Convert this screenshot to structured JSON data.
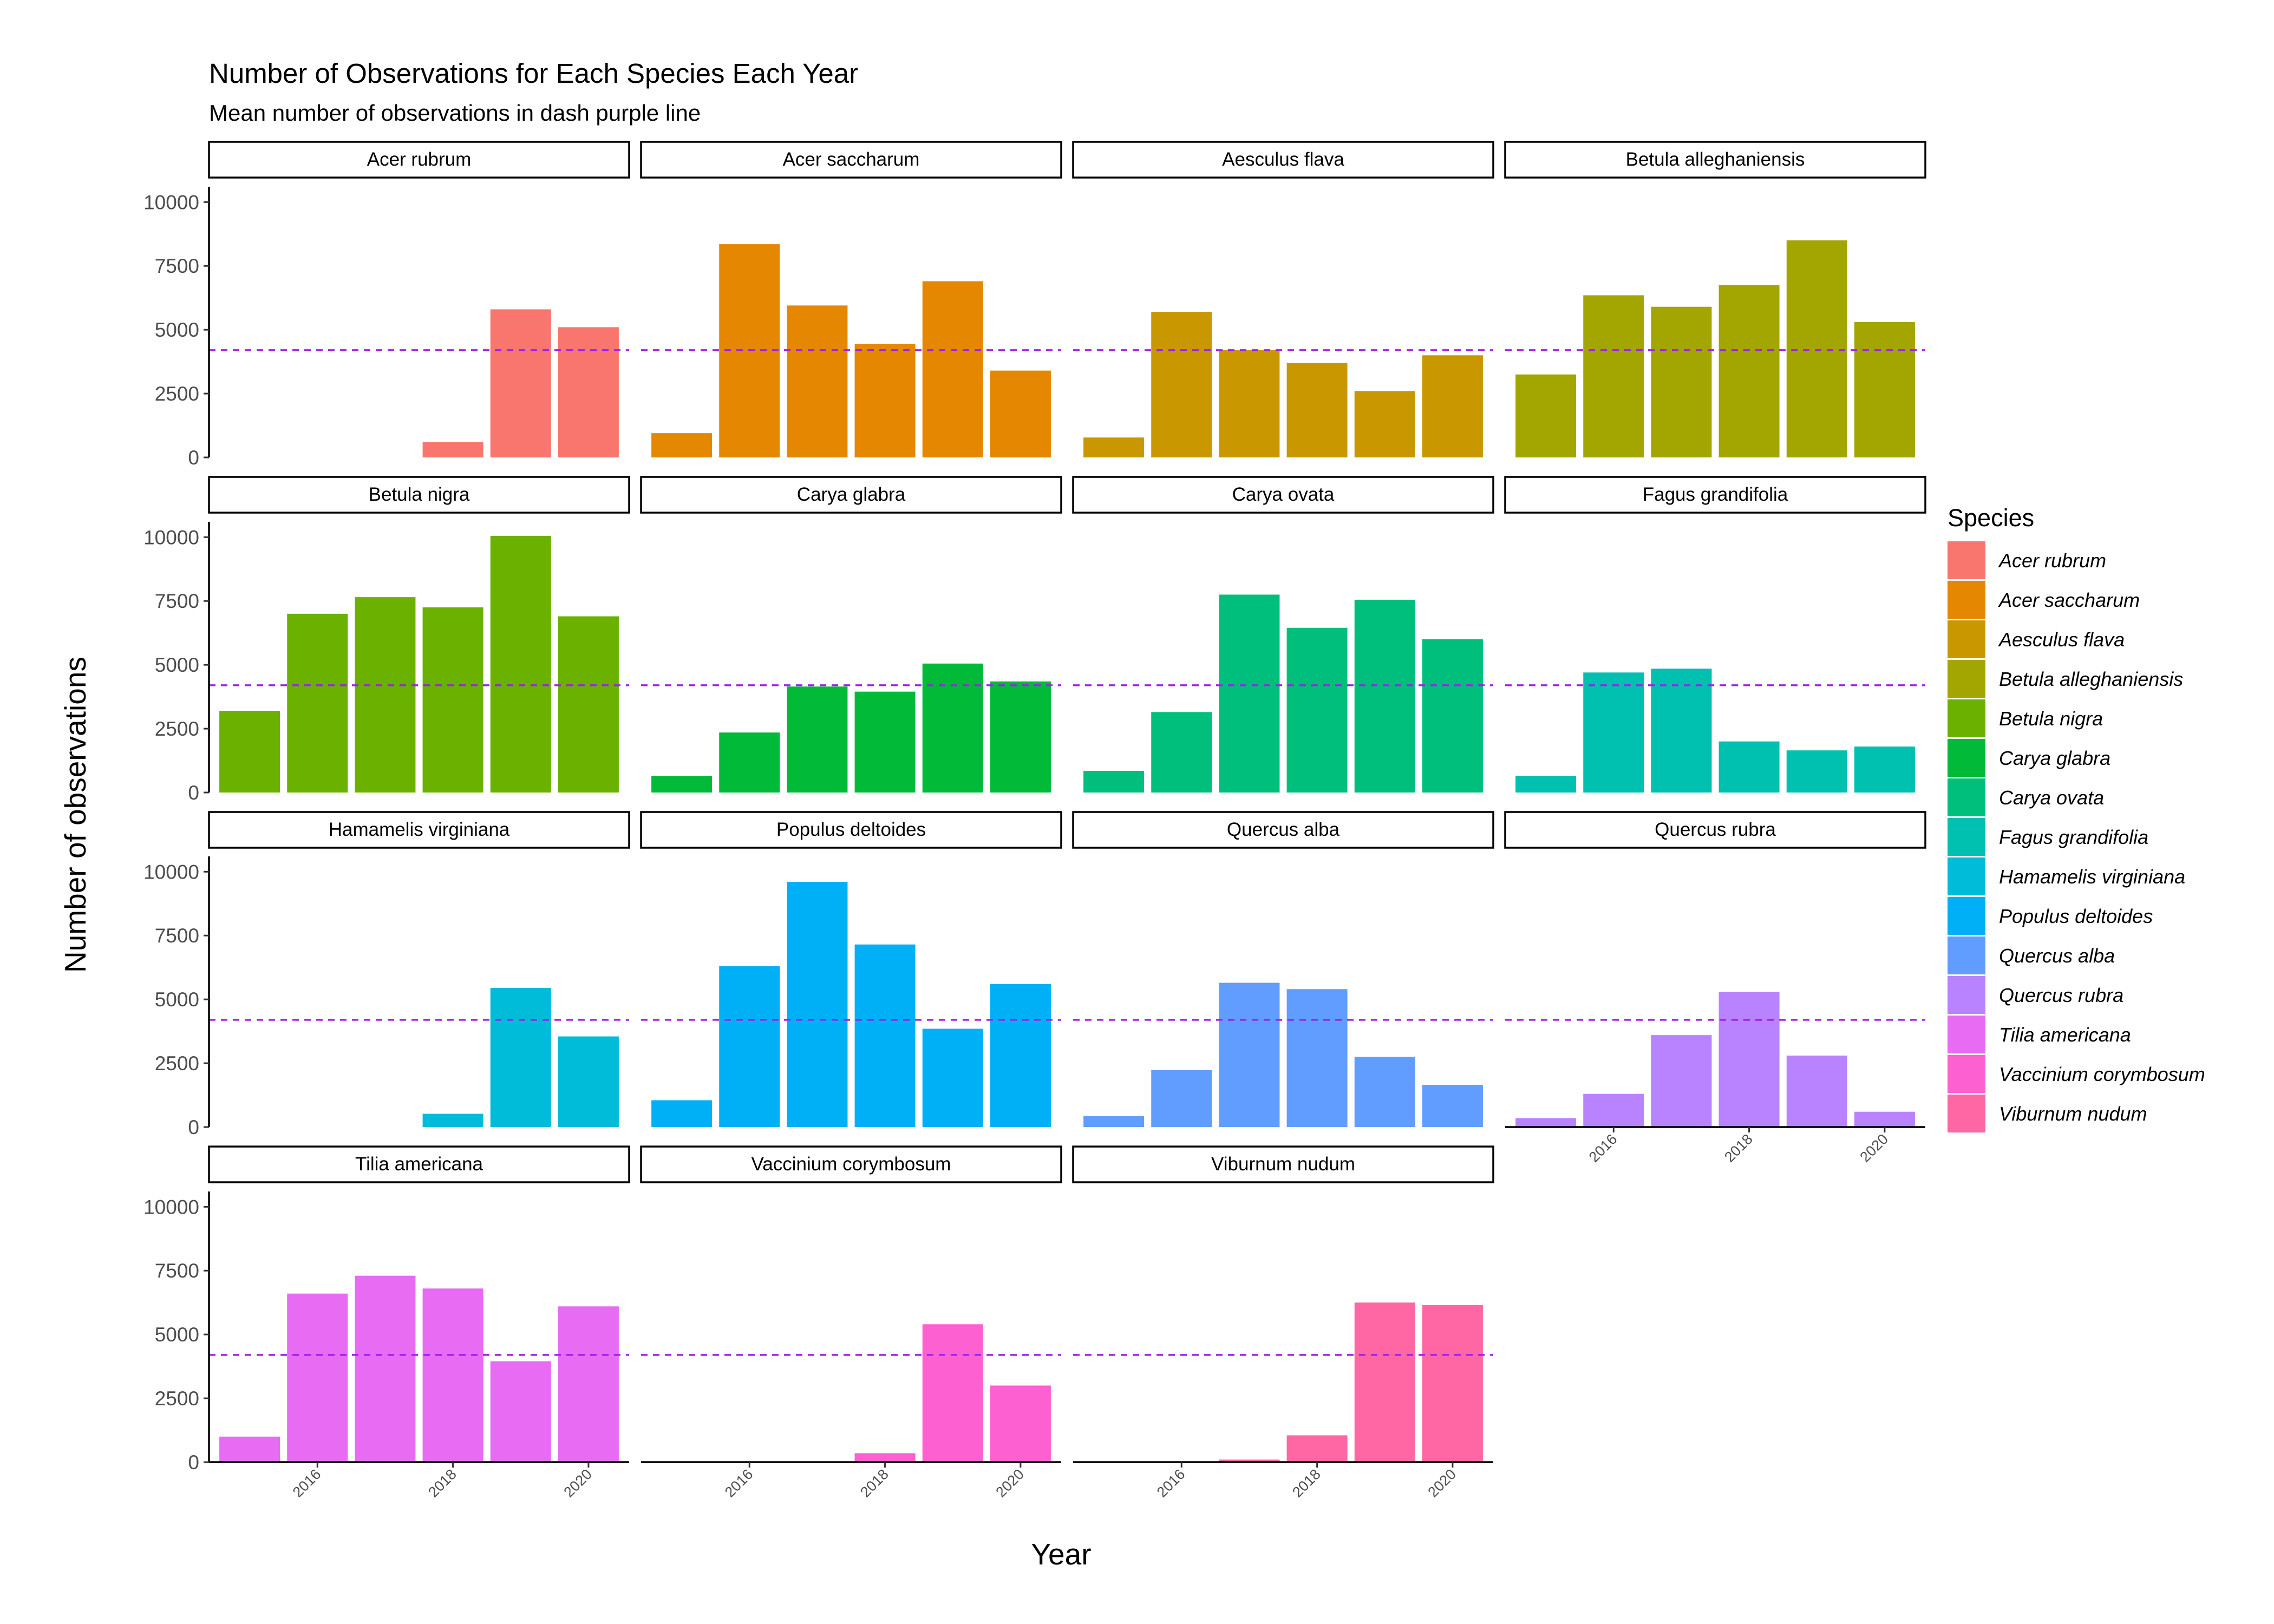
{
  "chart_data": {
    "type": "bar",
    "title": "Number of Observations for Each Species Each Year",
    "subtitle": "Mean number of observations in dash purple line",
    "xlabel": "Year",
    "ylabel": "Number of observations",
    "ylim": [
      0,
      10600
    ],
    "y_ticks": [
      0,
      2500,
      5000,
      7500,
      10000
    ],
    "x_range": [
      2014.4,
      2020.6
    ],
    "x_ticks": [
      2016,
      2018,
      2020
    ],
    "mean_line_value": 4200,
    "mean_line_color": "#a020f0",
    "legend_title": "Species",
    "legend_position": "right",
    "grid": false,
    "years": [
      2015,
      2016,
      2017,
      2018,
      2019,
      2020
    ],
    "series": [
      {
        "name": "Acer rubrum",
        "color": "#F8766D",
        "values": [
          0,
          0,
          0,
          600,
          5800,
          5100
        ]
      },
      {
        "name": "Acer saccharum",
        "color": "#E58700",
        "values": [
          950,
          8350,
          5950,
          4450,
          6900,
          3400
        ]
      },
      {
        "name": "Aesculus flava",
        "color": "#C99800",
        "values": [
          780,
          5700,
          4200,
          3700,
          2600,
          4000
        ]
      },
      {
        "name": "Betula alleghaniensis",
        "color": "#A3A500",
        "values": [
          3250,
          6350,
          5900,
          6750,
          8500,
          5300
        ]
      },
      {
        "name": "Betula nigra",
        "color": "#6BB100",
        "values": [
          3200,
          7000,
          7650,
          7250,
          10050,
          6900
        ]
      },
      {
        "name": "Carya glabra",
        "color": "#00BA38",
        "values": [
          650,
          2350,
          4150,
          3950,
          5050,
          4350
        ]
      },
      {
        "name": "Carya ovata",
        "color": "#00BF7D",
        "values": [
          850,
          3150,
          7750,
          6450,
          7550,
          6000
        ]
      },
      {
        "name": "Fagus grandifolia",
        "color": "#00C0AF",
        "values": [
          650,
          4700,
          4850,
          2000,
          1650,
          1800
        ]
      },
      {
        "name": "Hamamelis virginiana",
        "color": "#00BCD8",
        "values": [
          0,
          0,
          0,
          520,
          5450,
          3550
        ]
      },
      {
        "name": "Populus deltoides",
        "color": "#00B0F6",
        "values": [
          1050,
          6300,
          9600,
          7150,
          3850,
          5600
        ]
      },
      {
        "name": "Quercus alba",
        "color": "#619CFF",
        "values": [
          430,
          2230,
          5650,
          5400,
          2750,
          1650
        ]
      },
      {
        "name": "Quercus rubra",
        "color": "#B983FF",
        "values": [
          350,
          1300,
          3600,
          5300,
          2800,
          600
        ]
      },
      {
        "name": "Tilia americana",
        "color": "#E76BF3",
        "values": [
          1000,
          6600,
          7300,
          6800,
          3950,
          6100
        ]
      },
      {
        "name": "Vaccinium corymbosum",
        "color": "#FD61D1",
        "values": [
          0,
          0,
          0,
          350,
          5400,
          3000
        ]
      },
      {
        "name": "Viburnum nudum",
        "color": "#FF67A4",
        "values": [
          0,
          0,
          100,
          1050,
          6250,
          6150
        ]
      }
    ]
  }
}
